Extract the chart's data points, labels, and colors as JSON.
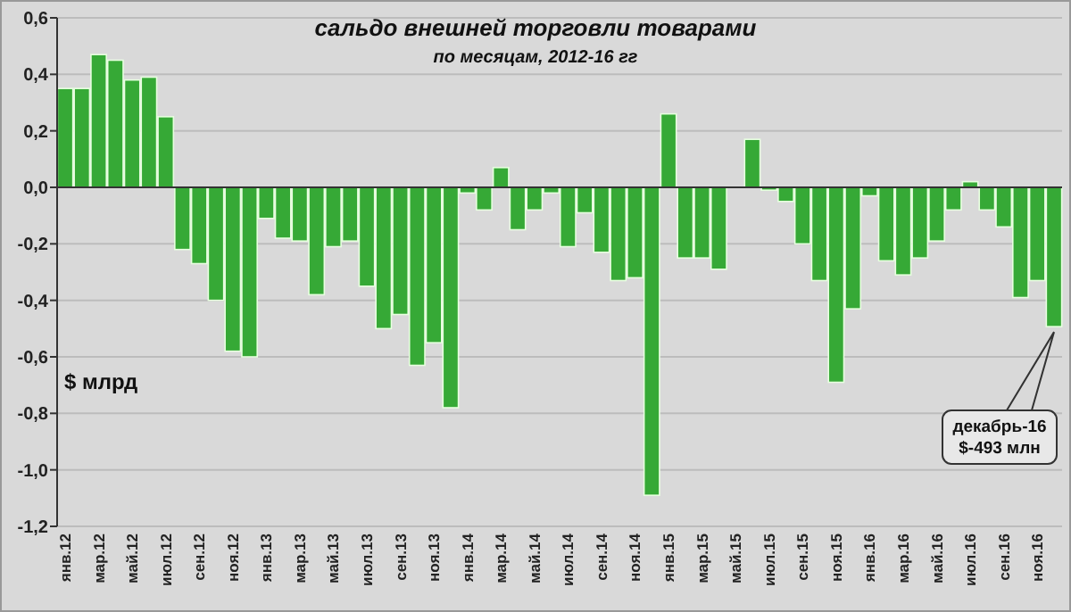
{
  "chart_data": {
    "type": "bar",
    "title": "сальдо внешней торговли товарами",
    "subtitle": "по месяцам, 2012-16 гг",
    "ylabel": "$ млрд",
    "categories": [
      "янв.12",
      null,
      "мар.12",
      null,
      "май.12",
      null,
      "июл.12",
      null,
      "сен.12",
      null,
      "ноя.12",
      null,
      "янв.13",
      null,
      "мар.13",
      null,
      "май.13",
      null,
      "июл.13",
      null,
      "сен.13",
      null,
      "ноя.13",
      null,
      "янв.14",
      null,
      "мар.14",
      null,
      "май.14",
      null,
      "июл.14",
      null,
      "сен.14",
      null,
      "ноя.14",
      null,
      "янв.15",
      null,
      "мар.15",
      null,
      "май.15",
      null,
      "июл.15",
      null,
      "сен.15",
      null,
      "ноя.15",
      null,
      "янв.16",
      null,
      "мар.16",
      null,
      "май.16",
      null,
      "июл.16",
      null,
      "сен.16",
      null,
      "ноя.16",
      null
    ],
    "values": [
      0.35,
      0.35,
      0.47,
      0.45,
      0.38,
      0.39,
      0.25,
      -0.22,
      -0.27,
      -0.4,
      -0.58,
      -0.6,
      -0.11,
      -0.18,
      -0.19,
      -0.38,
      -0.21,
      -0.19,
      -0.35,
      -0.5,
      -0.45,
      -0.63,
      -0.55,
      -0.78,
      -0.02,
      -0.08,
      0.07,
      -0.15,
      -0.08,
      -0.02,
      -0.21,
      -0.09,
      -0.23,
      -0.33,
      -0.32,
      -1.09,
      0.26,
      -0.25,
      -0.25,
      -0.29,
      0,
      0.17,
      -0.01,
      -0.05,
      -0.2,
      -0.33,
      -0.69,
      -0.43,
      -0.03,
      -0.26,
      -0.31,
      -0.25,
      -0.19,
      -0.08,
      0.02,
      -0.08,
      -0.14,
      -0.39,
      -0.33,
      -0.493
    ],
    "color": "#36a936",
    "ylim": [
      -1.2,
      0.6
    ],
    "yticks": [
      {
        "value": 0.6,
        "label": "0,6"
      },
      {
        "value": 0.4,
        "label": "0,4"
      },
      {
        "value": 0.2,
        "label": "0,2"
      },
      {
        "value": 0,
        "label": "0,0"
      },
      {
        "value": -0.2,
        "label": "-0,2"
      },
      {
        "value": -0.4,
        "label": "-0,4"
      },
      {
        "value": -0.6,
        "label": "-0,6"
      },
      {
        "value": -0.8,
        "label": "-0,8"
      },
      {
        "value": -1.0,
        "label": "-1,0"
      },
      {
        "value": -1.2,
        "label": "-1,2"
      }
    ],
    "grid": "y",
    "annotations": [
      "декабрь-16\n$-493 млн"
    ]
  }
}
